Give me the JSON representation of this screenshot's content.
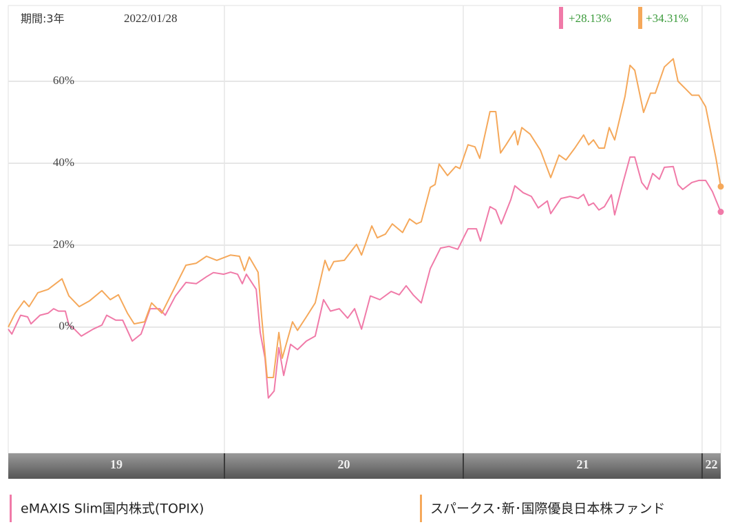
{
  "chart_data": {
    "type": "line",
    "period": "期間:3年",
    "date": "2022/01/28",
    "xlim": [
      2019.095,
      2022.078
    ],
    "xticks": [
      2020,
      2021,
      2022
    ],
    "year_labels": [
      "19",
      "20",
      "21",
      "22"
    ],
    "ylim": [
      -30.8,
      78.5
    ],
    "yticks": [
      {
        "value": 0,
        "label": "0%"
      },
      {
        "value": 20,
        "label": "20%"
      },
      {
        "value": 40,
        "label": "40%"
      },
      {
        "value": 60,
        "label": "60%"
      }
    ],
    "grid": true,
    "series": [
      {
        "name": "eMAXIS Slim国内株式(TOPIX)",
        "color": "#f07aa8",
        "end_label": "+28.13%",
        "x": [
          2019.095,
          2019.11,
          2019.147,
          2019.176,
          2019.19,
          2019.228,
          2019.262,
          2019.285,
          2019.305,
          2019.334,
          2019.349,
          2019.372,
          2019.401,
          2019.45,
          2019.487,
          2019.507,
          2019.545,
          2019.574,
          2019.614,
          2019.651,
          2019.689,
          2019.729,
          2019.752,
          2019.795,
          2019.839,
          2019.882,
          2019.925,
          2019.954,
          2019.997,
          2020.026,
          2020.055,
          2020.075,
          2020.092,
          2020.133,
          2020.15,
          2020.17,
          2020.184,
          2020.208,
          2020.228,
          2020.248,
          2020.277,
          2020.306,
          2020.343,
          2020.38,
          2020.415,
          2020.444,
          2020.481,
          2020.516,
          2020.545,
          2020.574,
          2020.611,
          2020.651,
          2020.698,
          2020.732,
          2020.761,
          2020.79,
          2020.824,
          2020.862,
          2020.905,
          2020.94,
          2020.977,
          2021.02,
          2021.055,
          2021.072,
          2021.112,
          2021.136,
          2021.159,
          2021.199,
          2021.216,
          2021.251,
          2021.285,
          2021.314,
          2021.352,
          2021.366,
          2021.409,
          2021.447,
          2021.481,
          2021.504,
          2021.525,
          2021.545,
          2021.568,
          2021.591,
          2021.62,
          2021.634,
          2021.669,
          2021.698,
          2021.718,
          2021.747,
          2021.77,
          2021.793,
          2021.821,
          2021.842,
          2021.879,
          2021.899,
          2021.919,
          2021.957,
          2021.986,
          2022.015,
          2022.043,
          2022.078
        ],
        "values": [
          -0.5,
          -1.7,
          2.9,
          2.5,
          0.8,
          2.9,
          3.4,
          4.5,
          3.9,
          3.9,
          0.5,
          -0.5,
          -2.2,
          -0.5,
          0.5,
          2.9,
          1.7,
          1.7,
          -3.4,
          -1.7,
          4.5,
          4.5,
          2.9,
          7.6,
          10.9,
          10.6,
          12.3,
          13.3,
          12.9,
          13.4,
          12.9,
          10.6,
          12.9,
          9.2,
          -1.3,
          -7.6,
          -17.3,
          -15.6,
          -5,
          -11.8,
          -4.2,
          -5.5,
          -3.4,
          -2.2,
          6.7,
          3.9,
          4.5,
          2.2,
          4.5,
          -0.5,
          7.6,
          6.7,
          8.7,
          7.9,
          10.1,
          7.9,
          5.9,
          14.3,
          19.3,
          19.7,
          19,
          24,
          24,
          21,
          29.4,
          28.6,
          25.2,
          31.1,
          34.5,
          32.8,
          31.9,
          29.1,
          30.8,
          27.7,
          31.4,
          31.9,
          31.4,
          32.4,
          29.7,
          30.3,
          28.6,
          29.4,
          32.3,
          27.4,
          35.3,
          41.5,
          41.5,
          35.3,
          33.6,
          37.5,
          36.1,
          39,
          39.2,
          34.8,
          33.6,
          35.3,
          35.8,
          35.8,
          33.1,
          28.13
        ]
      },
      {
        "name": "スパークス･新･国際優良日本株ファンド",
        "color": "#f5a85a",
        "end_label": "+34.31%",
        "x": [
          2019.095,
          2019.124,
          2019.161,
          2019.182,
          2019.219,
          2019.262,
          2019.32,
          2019.349,
          2019.392,
          2019.435,
          2019.487,
          2019.522,
          2019.556,
          2019.594,
          2019.622,
          2019.666,
          2019.695,
          2019.738,
          2019.781,
          2019.839,
          2019.882,
          2019.925,
          2019.968,
          2020.026,
          2020.063,
          2020.084,
          2020.104,
          2020.141,
          2020.156,
          2020.179,
          2020.205,
          2020.228,
          2020.242,
          2020.285,
          2020.306,
          2020.343,
          2020.38,
          2020.421,
          2020.438,
          2020.458,
          2020.502,
          2020.553,
          2020.574,
          2020.617,
          2020.64,
          2020.674,
          2020.703,
          2020.746,
          2020.775,
          2020.804,
          2020.824,
          2020.862,
          2020.882,
          2020.899,
          2020.934,
          2020.968,
          2020.986,
          2021.02,
          2021.049,
          2021.069,
          2021.112,
          2021.136,
          2021.156,
          2021.179,
          2021.216,
          2021.228,
          2021.245,
          2021.28,
          2021.323,
          2021.366,
          2021.401,
          2021.43,
          2021.467,
          2021.504,
          2021.525,
          2021.545,
          2021.568,
          2021.591,
          2021.611,
          2021.634,
          2021.677,
          2021.698,
          2021.718,
          2021.755,
          2021.784,
          2021.804,
          2021.842,
          2021.879,
          2021.899,
          2021.928,
          2021.957,
          2021.986,
          2022.015,
          2022.058,
          2022.078
        ],
        "values": [
          0,
          3.4,
          6.4,
          5,
          8.4,
          9.2,
          11.8,
          7.6,
          5,
          6.4,
          8.9,
          6.7,
          7.9,
          3.4,
          0.8,
          1.3,
          5.9,
          3.4,
          8.4,
          15.1,
          15.6,
          17.3,
          16.3,
          17.6,
          17.3,
          13.8,
          17.1,
          13.4,
          2.5,
          -12.3,
          -12.3,
          -1.3,
          -7.6,
          1.3,
          -0.8,
          2.5,
          5.9,
          16.3,
          13.8,
          16,
          16.3,
          20.2,
          17.6,
          24.7,
          21.8,
          22.7,
          25.2,
          23.1,
          26.4,
          25.2,
          25.7,
          34.1,
          34.8,
          39.8,
          37,
          39.2,
          38.7,
          44.5,
          44,
          41.2,
          52.6,
          52.6,
          42.5,
          44.5,
          47.9,
          44.5,
          48.7,
          47.1,
          43.2,
          36.5,
          42,
          40.8,
          43.7,
          46.9,
          44.5,
          45.7,
          43.7,
          43.7,
          48.7,
          45.7,
          56.3,
          63.9,
          62.7,
          52.4,
          57.1,
          57.1,
          63.5,
          65.5,
          60,
          58.3,
          56.6,
          56.6,
          53.8,
          41.2,
          34.31
        ]
      }
    ]
  }
}
